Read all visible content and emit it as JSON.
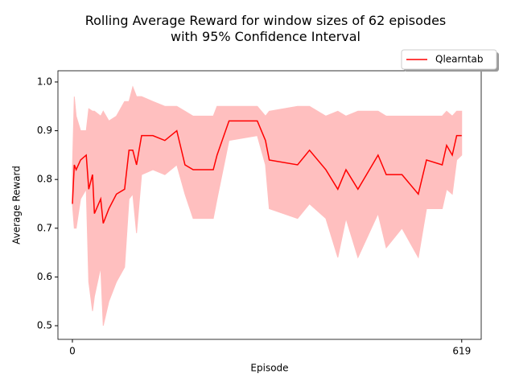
{
  "chart_data": {
    "type": "line",
    "title": "Rolling Average Reward for window sizes of 62 episodes\nwith 95% Confidence Interval",
    "x_label": "Episode",
    "y_label": "Average Reward",
    "x": [
      0,
      3,
      6,
      13,
      22,
      26,
      32,
      35,
      45,
      49,
      58,
      70,
      83,
      90,
      96,
      102,
      110,
      128,
      147,
      166,
      179,
      192,
      224,
      230,
      249,
      294,
      307,
      313,
      358,
      377,
      403,
      422,
      435,
      454,
      486,
      499,
      524,
      550,
      563,
      588,
      595,
      604,
      611,
      619
    ],
    "series": [
      {
        "name": "Qlearntab",
        "color": "#ff0000",
        "band_color": "#ffbfbf",
        "values": [
          0.75,
          0.83,
          0.82,
          0.84,
          0.85,
          0.78,
          0.81,
          0.73,
          0.76,
          0.71,
          0.74,
          0.77,
          0.78,
          0.86,
          0.86,
          0.83,
          0.89,
          0.89,
          0.88,
          0.9,
          0.83,
          0.82,
          0.82,
          0.85,
          0.92,
          0.92,
          0.88,
          0.84,
          0.83,
          0.86,
          0.82,
          0.78,
          0.82,
          0.78,
          0.85,
          0.81,
          0.81,
          0.77,
          0.84,
          0.83,
          0.87,
          0.85,
          0.89,
          0.89
        ],
        "upper": [
          0.82,
          0.97,
          0.93,
          0.9,
          0.9,
          0.945,
          0.94,
          0.94,
          0.93,
          0.94,
          0.92,
          0.93,
          0.96,
          0.96,
          0.99,
          0.97,
          0.97,
          0.96,
          0.95,
          0.95,
          0.94,
          0.93,
          0.93,
          0.95,
          0.95,
          0.95,
          0.93,
          0.94,
          0.95,
          0.95,
          0.93,
          0.94,
          0.93,
          0.94,
          0.94,
          0.93,
          0.93,
          0.93,
          0.93,
          0.93,
          0.94,
          0.93,
          0.94,
          0.94
        ],
        "lower": [
          0.75,
          0.7,
          0.7,
          0.76,
          0.78,
          0.59,
          0.53,
          0.56,
          0.62,
          0.5,
          0.55,
          0.59,
          0.62,
          0.76,
          0.77,
          0.69,
          0.81,
          0.82,
          0.81,
          0.83,
          0.77,
          0.72,
          0.72,
          0.76,
          0.88,
          0.89,
          0.83,
          0.74,
          0.72,
          0.75,
          0.72,
          0.64,
          0.72,
          0.64,
          0.73,
          0.66,
          0.7,
          0.64,
          0.74,
          0.74,
          0.78,
          0.77,
          0.84,
          0.85
        ]
      }
    ],
    "xlim": [
      -23,
      650
    ],
    "ylim": [
      0.472,
      1.023
    ],
    "xticks": [
      0,
      619
    ],
    "yticks": [
      {
        "value": 0.5,
        "label": "0.5"
      },
      {
        "value": 0.6,
        "label": "0.6"
      },
      {
        "value": 0.7,
        "label": "0.7"
      },
      {
        "value": 0.8,
        "label": "0.8"
      },
      {
        "value": 0.9,
        "label": "0.9"
      },
      {
        "value": 1.0,
        "label": "1.0"
      }
    ],
    "legend": "upper right"
  }
}
